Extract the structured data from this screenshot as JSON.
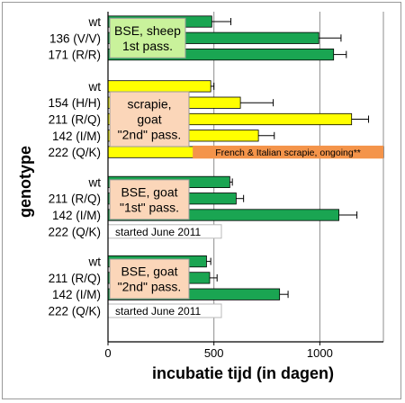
{
  "chart_data": {
    "type": "bar",
    "orientation": "horizontal",
    "title": "",
    "xlabel": "incubatie tijd (in dagen)",
    "ylabel": "genotype",
    "xlim": [
      0,
      1300
    ],
    "xticks": [
      0,
      500,
      1000
    ],
    "grid": "vertical lines at 500 and 1000",
    "colors": {
      "green": "#1aa552",
      "yellow": "#ffff00",
      "orange": "#f4944a",
      "box_green": "#c9f29b",
      "box_peach": "#fbd6b9"
    },
    "groups": [
      {
        "label": "BSE, sheep\n1st pass.",
        "box_color": "box_green",
        "rows": [
          {
            "genotype": "wt",
            "value": 490,
            "error": 90,
            "color": "green"
          },
          {
            "genotype": "136 (V/V)",
            "value": 995,
            "error": 105,
            "color": "green"
          },
          {
            "genotype": "171 (R/R)",
            "value": 1065,
            "error": 60,
            "color": "green"
          }
        ]
      },
      {
        "label": "scrapie,\ngoat\n\"2nd\" pass.",
        "box_color": "box_peach",
        "rows": [
          {
            "genotype": "wt",
            "value": 485,
            "error": 15,
            "color": "yellow"
          },
          {
            "genotype": "154 (H/H)",
            "value": 625,
            "error": 155,
            "color": "yellow"
          },
          {
            "genotype": "211 (R/Q)",
            "value": 1150,
            "error": 80,
            "color": "yellow"
          },
          {
            "genotype": "142 (I/M)",
            "value": 710,
            "error": 75,
            "color": "yellow"
          },
          {
            "genotype": "222 (Q/K)",
            "value": 1300,
            "error": null,
            "color": "yellow",
            "overlay": {
              "from": 400,
              "to": 1300,
              "color": "orange",
              "text": "French & Italian scrapie, ongoing**"
            }
          }
        ]
      },
      {
        "label": "BSE, goat\n\"1st\" pass.",
        "box_color": "box_peach",
        "rows": [
          {
            "genotype": "wt",
            "value": 575,
            "error": 12,
            "color": "green"
          },
          {
            "genotype": "211 (R/Q)",
            "value": 605,
            "error": 35,
            "color": "green"
          },
          {
            "genotype": "142 (I/M)",
            "value": 1090,
            "error": 85,
            "color": "green"
          },
          {
            "genotype": "222 (Q/K)",
            "value": null,
            "error": null,
            "note": "started June 2011"
          }
        ]
      },
      {
        "label": "BSE, goat\n\"2nd\" pass.",
        "box_color": "box_peach",
        "rows": [
          {
            "genotype": "wt",
            "value": 465,
            "error": 20,
            "color": "green"
          },
          {
            "genotype": "211 (R/Q)",
            "value": 480,
            "error": 35,
            "color": "green"
          },
          {
            "genotype": "142 (I/M)",
            "value": 810,
            "error": 40,
            "color": "green"
          },
          {
            "genotype": "222 (Q/K)",
            "value": null,
            "error": null,
            "note": "started June 2011"
          }
        ]
      }
    ]
  }
}
